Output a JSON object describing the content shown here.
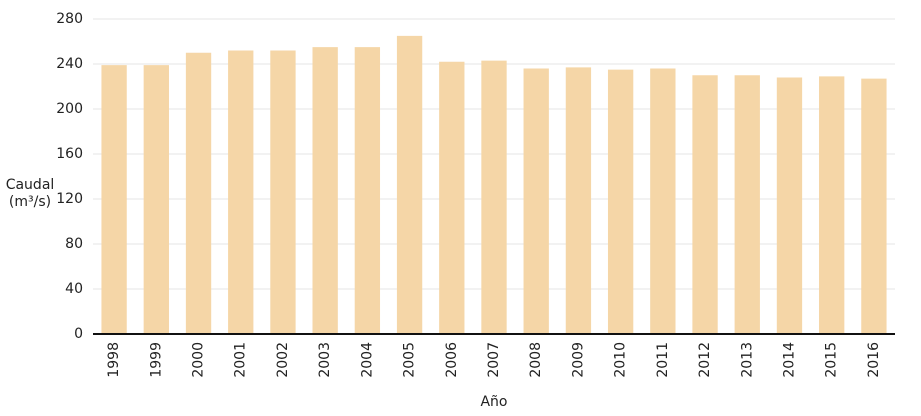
{
  "chart_data": {
    "type": "bar",
    "y_label": [
      "Caudal",
      "(m³/s)"
    ],
    "x_label": "Año",
    "categories": [
      "1998",
      "1999",
      "2000",
      "2001",
      "2002",
      "2003",
      "2004",
      "2005",
      "2006",
      "2007",
      "2008",
      "2009",
      "2010",
      "2011",
      "2012",
      "2013",
      "2014",
      "2015",
      "2016"
    ],
    "values": [
      239,
      239,
      250,
      252,
      252,
      255,
      255,
      265,
      242,
      243,
      236,
      237,
      235,
      236,
      230,
      230,
      228,
      229,
      227
    ],
    "color": "#f5d6a7",
    "ylim": [
      0,
      280
    ],
    "yticks": [
      0,
      40,
      80,
      120,
      160,
      200,
      240,
      280
    ],
    "grid": true
  }
}
